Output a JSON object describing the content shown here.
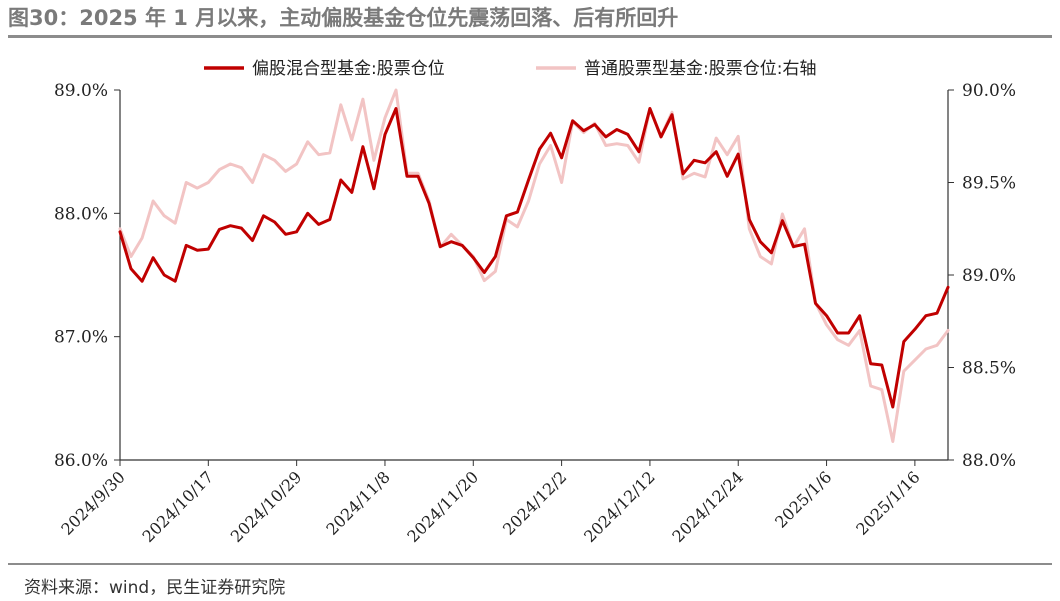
{
  "header": {
    "title": "图30：2025 年 1 月以来，主动偏股基金仓位先震荡回落、后有所回升"
  },
  "footer": {
    "source": "资料来源：wind，民生证券研究院"
  },
  "colors": {
    "series1": "#c00000",
    "series2": "#f2c4c4",
    "axis": "#333333"
  },
  "chart_data": {
    "type": "line",
    "title": "图30：2025 年 1 月以来，主动偏股基金仓位先震荡回落、后有所回升",
    "legend_position": "top-center",
    "grid": false,
    "x_ticks": [
      "2024/9/30",
      "2024/10/17",
      "2024/10/29",
      "2024/11/8",
      "2024/11/20",
      "2024/12/2",
      "2024/12/12",
      "2024/12/24",
      "2025/1/6",
      "2025/1/16"
    ],
    "x_tick_index": [
      0,
      8,
      16,
      24,
      32,
      40,
      48,
      56,
      64,
      72
    ],
    "y_left": {
      "min": 86.0,
      "max": 89.0,
      "ticks": [
        "86.0%",
        "87.0%",
        "88.0%",
        "89.0%"
      ],
      "tick_values": [
        86.0,
        87.0,
        88.0,
        89.0
      ]
    },
    "y_right": {
      "min": 88.0,
      "max": 90.0,
      "ticks": [
        "88.0%",
        "88.5%",
        "89.0%",
        "89.5%",
        "90.0%"
      ],
      "tick_values": [
        88.0,
        88.5,
        89.0,
        89.5,
        90.0
      ]
    },
    "series": [
      {
        "name": "偏股混合型基金:股票仓位",
        "axis": "left",
        "values": [
          87.85,
          87.55,
          87.45,
          87.64,
          87.5,
          87.45,
          87.74,
          87.7,
          87.71,
          87.87,
          87.9,
          87.88,
          87.78,
          87.98,
          87.93,
          87.83,
          87.85,
          88.0,
          87.91,
          87.95,
          88.27,
          88.17,
          88.54,
          88.2,
          88.64,
          88.85,
          88.3,
          88.3,
          88.08,
          87.73,
          87.77,
          87.74,
          87.64,
          87.52,
          87.65,
          87.98,
          88.01,
          88.27,
          88.52,
          88.65,
          88.45,
          88.75,
          88.67,
          88.72,
          88.62,
          88.68,
          88.64,
          88.5,
          88.85,
          88.62,
          88.8,
          88.32,
          88.43,
          88.41,
          88.5,
          88.3,
          88.48,
          87.95,
          87.77,
          87.68,
          87.94,
          87.73,
          87.75,
          87.27,
          87.17,
          87.03,
          87.03,
          87.17,
          86.78,
          86.77,
          86.43,
          86.96,
          87.06,
          87.17,
          87.19,
          87.4
        ]
      },
      {
        "name": "普通股票型基金:股票仓位:右轴",
        "axis": "right",
        "values": [
          89.25,
          89.1,
          89.2,
          89.4,
          89.32,
          89.28,
          89.5,
          89.47,
          89.5,
          89.57,
          89.6,
          89.58,
          89.5,
          89.65,
          89.62,
          89.56,
          89.6,
          89.72,
          89.65,
          89.66,
          89.92,
          89.73,
          89.95,
          89.62,
          89.85,
          90.0,
          89.55,
          89.55,
          89.4,
          89.15,
          89.22,
          89.16,
          89.1,
          88.97,
          89.02,
          89.3,
          89.26,
          89.4,
          89.6,
          89.7,
          89.5,
          89.83,
          89.77,
          89.82,
          89.7,
          89.71,
          89.7,
          89.61,
          89.9,
          89.75,
          89.88,
          89.52,
          89.55,
          89.53,
          89.74,
          89.65,
          89.75,
          89.25,
          89.1,
          89.06,
          89.33,
          89.15,
          89.25,
          88.85,
          88.73,
          88.65,
          88.62,
          88.7,
          88.4,
          88.38,
          88.1,
          88.48,
          88.54,
          88.6,
          88.62,
          88.7
        ]
      }
    ]
  }
}
